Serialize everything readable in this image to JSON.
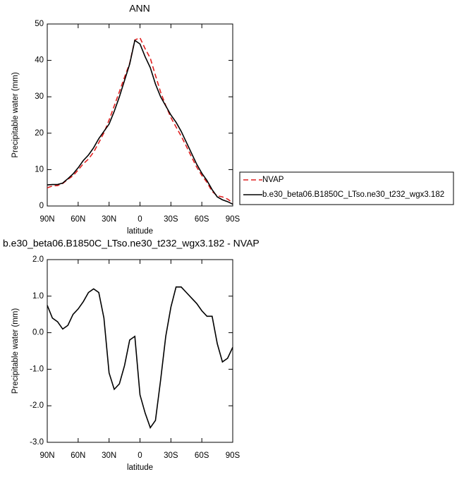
{
  "chart_data": [
    {
      "type": "line",
      "title": "ANN",
      "xlabel": "latitude",
      "ylabel": "Precipitable water (mm)",
      "x": [
        90,
        85,
        80,
        75,
        70,
        65,
        60,
        55,
        50,
        45,
        40,
        35,
        30,
        25,
        20,
        15,
        10,
        5,
        0,
        -5,
        -10,
        -15,
        -20,
        -25,
        -30,
        -35,
        -40,
        -45,
        -50,
        -55,
        -60,
        -65,
        -70,
        -75,
        -80,
        -85,
        -90
      ],
      "series": [
        {
          "name": "NVAP",
          "color": "#e02020",
          "linestyle": "dashed",
          "values": [
            5.0,
            5.5,
            5.6,
            6.2,
            7.3,
            8.3,
            9.9,
            11.6,
            12.9,
            14.8,
            17.4,
            20.1,
            23.6,
            27.5,
            31.4,
            35.4,
            39.2,
            45.6,
            46.2,
            43.2,
            40.6,
            35.9,
            31.3,
            27.6,
            24.3,
            21.7,
            19.2,
            16.4,
            13.5,
            10.7,
            8.4,
            6.5,
            4.0,
            2.8,
            2.5,
            1.9,
            0.9
          ]
        },
        {
          "name": "b.e30_beta06.B1850C_LTso.ne30_t232_wgx3.182",
          "color": "#000000",
          "linestyle": "solid",
          "values": [
            5.8,
            5.9,
            5.9,
            6.3,
            7.5,
            8.8,
            10.5,
            12.5,
            14,
            16,
            18.5,
            20.5,
            22.5,
            26,
            30,
            34.5,
            39,
            45.5,
            44.5,
            41,
            38,
            33.5,
            30,
            27.5,
            25,
            23,
            20.5,
            17.5,
            14.5,
            11.5,
            9,
            7,
            4.5,
            2.5,
            1.7,
            1.2,
            0.5
          ]
        }
      ],
      "xlim": [
        90,
        -90
      ],
      "xticks": [
        {
          "value": 90,
          "label": "90N"
        },
        {
          "value": 60,
          "label": "60N"
        },
        {
          "value": 30,
          "label": "30N"
        },
        0,
        {
          "value": -30,
          "label": "30S"
        },
        {
          "value": -60,
          "label": "60S"
        },
        {
          "value": -90,
          "label": "90S"
        }
      ],
      "ylim": [
        0,
        50
      ],
      "yticks": [
        0,
        10,
        20,
        30,
        40,
        50
      ],
      "legend": "outside-right"
    },
    {
      "type": "line",
      "title": "b.e30_beta06.B1850C_LTso.ne30_t232_wgx3.182 - NVAP",
      "xlabel": "latitude",
      "ylabel": "Precipitable water (mm)",
      "x": [
        90,
        85,
        80,
        75,
        70,
        65,
        60,
        55,
        50,
        45,
        40,
        35,
        30,
        25,
        20,
        15,
        10,
        5,
        0,
        -5,
        -10,
        -15,
        -20,
        -25,
        -30,
        -35,
        -40,
        -45,
        -50,
        -55,
        -60,
        -65,
        -70,
        -75,
        -80,
        -85,
        -90
      ],
      "series": [
        {
          "color": "#000000",
          "linestyle": "solid",
          "values": [
            0.75,
            0.4,
            0.3,
            0.1,
            0.2,
            0.5,
            0.65,
            0.85,
            1.1,
            1.2,
            1.1,
            0.4,
            -1.1,
            -1.55,
            -1.4,
            -0.9,
            -0.2,
            -0.1,
            -1.7,
            -2.2,
            -2.6,
            -2.4,
            -1.3,
            -0.1,
            0.7,
            1.25,
            1.25,
            1.1,
            0.95,
            0.8,
            0.6,
            0.45,
            0.45,
            -0.3,
            -0.8,
            -0.7,
            -0.4
          ]
        }
      ],
      "xlim": [
        90,
        -90
      ],
      "xticks": [
        {
          "value": 90,
          "label": "90N"
        },
        {
          "value": 60,
          "label": "60N"
        },
        {
          "value": 30,
          "label": "30N"
        },
        0,
        {
          "value": -30,
          "label": "30S"
        },
        {
          "value": -60,
          "label": "60S"
        },
        {
          "value": -90,
          "label": "90S"
        }
      ],
      "ylim": [
        -3,
        2
      ],
      "yticks": [
        {
          "value": -3,
          "label": "-3.0"
        },
        {
          "value": -2,
          "label": "-2.0"
        },
        {
          "value": -1,
          "label": "-1.0"
        },
        {
          "value": 0,
          "label": "0.0"
        },
        {
          "value": 1,
          "label": "1.0"
        },
        {
          "value": 2,
          "label": "2.0"
        }
      ]
    }
  ]
}
